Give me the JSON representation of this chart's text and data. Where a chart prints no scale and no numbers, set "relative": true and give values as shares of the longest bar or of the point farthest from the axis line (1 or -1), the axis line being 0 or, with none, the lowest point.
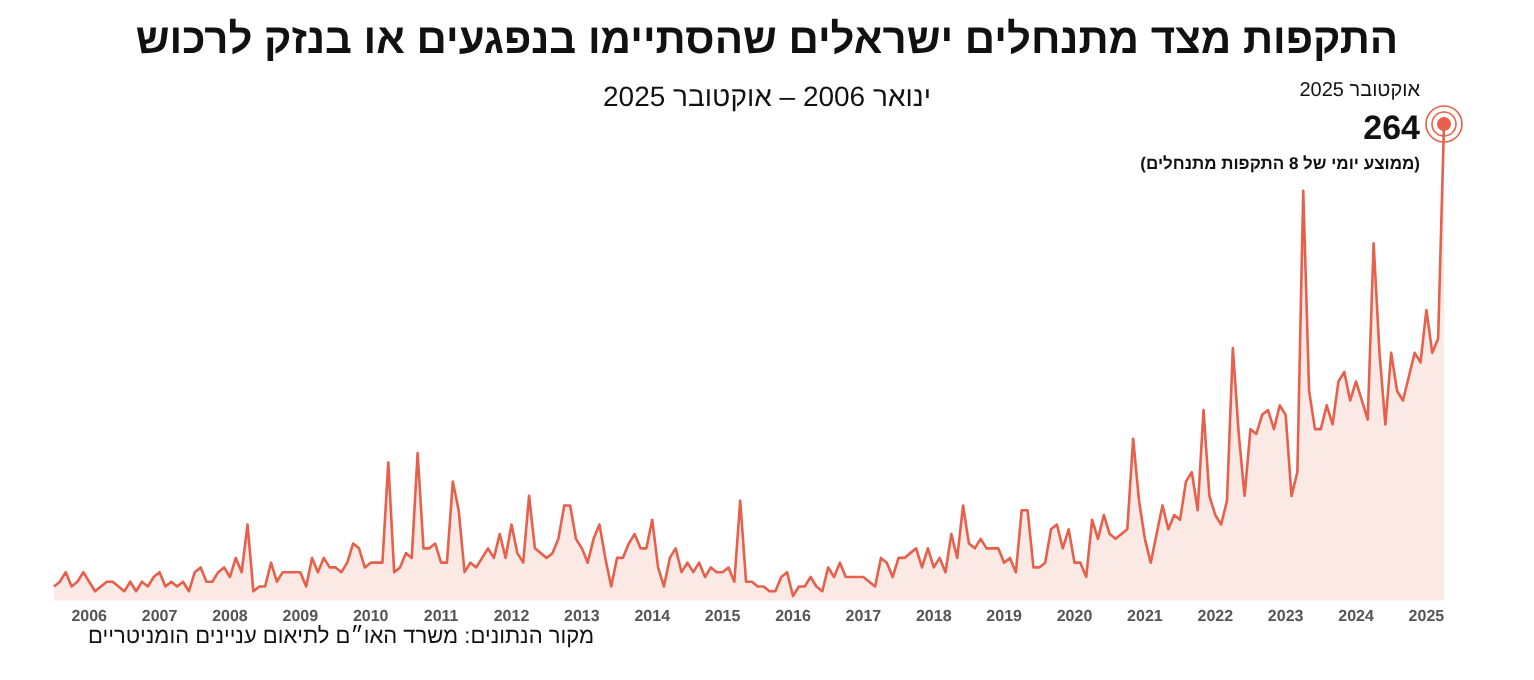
{
  "chart_data": {
    "type": "area",
    "title": "התקפות מצד מתנחלים ישראלים שהסתיימו בנפגעים או בנזק לרכוש",
    "subtitle": "ינואר 2006 – אוקטובר 2025",
    "relative": true,
    "annotations": [
      "אוקטובר 2025",
      "264",
      "(ממוצע יומי של 8 התקפות מתנחלים)",
      "מקור הנתונים: משרד האו״ם לתיאום עניינים הומניטריים"
    ],
    "categories": [
      null,
      null,
      null,
      null,
      null,
      null,
      "2006",
      null,
      null,
      null,
      null,
      null,
      null,
      null,
      null,
      null,
      null,
      null,
      "2007",
      null,
      null,
      null,
      null,
      null,
      null,
      null,
      null,
      null,
      null,
      null,
      "2008",
      null,
      null,
      null,
      null,
      null,
      null,
      null,
      null,
      null,
      null,
      null,
      "2009",
      null,
      null,
      null,
      null,
      null,
      null,
      null,
      null,
      null,
      null,
      null,
      "2010",
      null,
      null,
      null,
      null,
      null,
      null,
      null,
      null,
      null,
      null,
      null,
      "2011",
      null,
      null,
      null,
      null,
      null,
      null,
      null,
      null,
      null,
      null,
      null,
      "2012",
      null,
      null,
      null,
      null,
      null,
      null,
      null,
      null,
      null,
      null,
      null,
      "2013",
      null,
      null,
      null,
      null,
      null,
      null,
      null,
      null,
      null,
      null,
      null,
      "2014",
      null,
      null,
      null,
      null,
      null,
      null,
      null,
      null,
      null,
      null,
      null,
      "2015",
      null,
      null,
      null,
      null,
      null,
      null,
      null,
      null,
      null,
      null,
      null,
      "2016",
      null,
      null,
      null,
      null,
      null,
      null,
      null,
      null,
      null,
      null,
      null,
      "2017",
      null,
      null,
      null,
      null,
      null,
      null,
      null,
      null,
      null,
      null,
      null,
      "2018",
      null,
      null,
      null,
      null,
      null,
      null,
      null,
      null,
      null,
      null,
      null,
      "2019",
      null,
      null,
      null,
      null,
      null,
      null,
      null,
      null,
      null,
      null,
      null,
      "2020",
      null,
      null,
      null,
      null,
      null,
      null,
      null,
      null,
      null,
      null,
      null,
      "2021",
      null,
      null,
      null,
      null,
      null,
      null,
      null,
      null,
      null,
      null,
      null,
      "2022",
      null,
      null,
      null,
      null,
      null,
      null,
      null,
      null,
      null,
      null,
      null,
      "2023",
      null,
      null,
      null,
      null,
      null,
      null,
      null,
      null,
      null,
      null,
      null,
      "2024",
      null,
      null,
      null,
      null,
      null,
      null,
      null,
      null,
      null,
      null,
      null,
      "2025",
      null,
      null,
      null
    ],
    "series": [
      {
        "color": "#e6604b",
        "values": [
          0.03,
          0.04,
          0.06,
          0.03,
          0.04,
          0.06,
          0.04,
          0.02,
          0.03,
          0.04,
          0.04,
          0.03,
          0.02,
          0.04,
          0.02,
          0.04,
          0.03,
          0.05,
          0.06,
          0.03,
          0.04,
          0.03,
          0.04,
          0.02,
          0.06,
          0.07,
          0.04,
          0.04,
          0.06,
          0.07,
          0.05,
          0.09,
          0.06,
          0.16,
          0.02,
          0.03,
          0.03,
          0.08,
          0.04,
          0.06,
          0.06,
          0.06,
          0.06,
          0.03,
          0.09,
          0.06,
          0.09,
          0.07,
          0.07,
          0.06,
          0.08,
          0.12,
          0.11,
          0.07,
          0.08,
          0.08,
          0.08,
          0.29,
          0.06,
          0.07,
          0.1,
          0.09,
          0.31,
          0.11,
          0.11,
          0.12,
          0.08,
          0.08,
          0.25,
          0.19,
          0.06,
          0.08,
          0.07,
          0.09,
          0.11,
          0.09,
          0.14,
          0.09,
          0.16,
          0.1,
          0.08,
          0.22,
          0.11,
          0.1,
          0.09,
          0.1,
          0.13,
          0.2,
          0.2,
          0.13,
          0.11,
          0.08,
          0.13,
          0.16,
          0.09,
          0.03,
          0.09,
          0.09,
          0.12,
          0.14,
          0.11,
          0.11,
          0.17,
          0.07,
          0.03,
          0.09,
          0.11,
          0.06,
          0.08,
          0.06,
          0.08,
          0.05,
          0.07,
          0.06,
          0.06,
          0.07,
          0.04,
          0.21,
          0.04,
          0.04,
          0.03,
          0.03,
          0.02,
          0.02,
          0.05,
          0.06,
          0.01,
          0.03,
          0.03,
          0.05,
          0.03,
          0.02,
          0.07,
          0.05,
          0.08,
          0.05,
          0.05,
          0.05,
          0.05,
          0.04,
          0.03,
          0.09,
          0.08,
          0.05,
          0.09,
          0.09,
          0.1,
          0.11,
          0.07,
          0.11,
          0.07,
          0.09,
          0.06,
          0.14,
          0.09,
          0.2,
          0.12,
          0.11,
          0.13,
          0.11,
          0.11,
          0.11,
          0.08,
          0.09,
          0.06,
          0.19,
          0.19,
          0.07,
          0.07,
          0.08,
          0.15,
          0.16,
          0.11,
          0.15,
          0.08,
          0.08,
          0.05,
          0.17,
          0.13,
          0.18,
          0.14,
          0.13,
          0.14,
          0.15,
          0.34,
          0.21,
          0.13,
          0.08,
          0.14,
          0.2,
          0.15,
          0.18,
          0.17,
          0.25,
          0.27,
          0.19,
          0.4,
          0.22,
          0.18,
          0.16,
          0.21,
          0.53,
          0.35,
          0.22,
          0.36,
          0.35,
          0.39,
          0.4,
          0.36,
          0.41,
          0.39,
          0.22,
          0.27,
          0.86,
          0.44,
          0.36,
          0.36,
          0.41,
          0.37,
          0.46,
          0.48,
          0.42,
          0.46,
          0.42,
          0.38,
          0.75,
          0.52,
          0.37,
          0.52,
          0.44,
          0.42,
          0.47,
          0.52,
          0.5,
          0.61,
          0.52,
          0.55,
          1
        ]
      }
    ],
    "grid": false,
    "legend": false,
    "marker": "none"
  }
}
